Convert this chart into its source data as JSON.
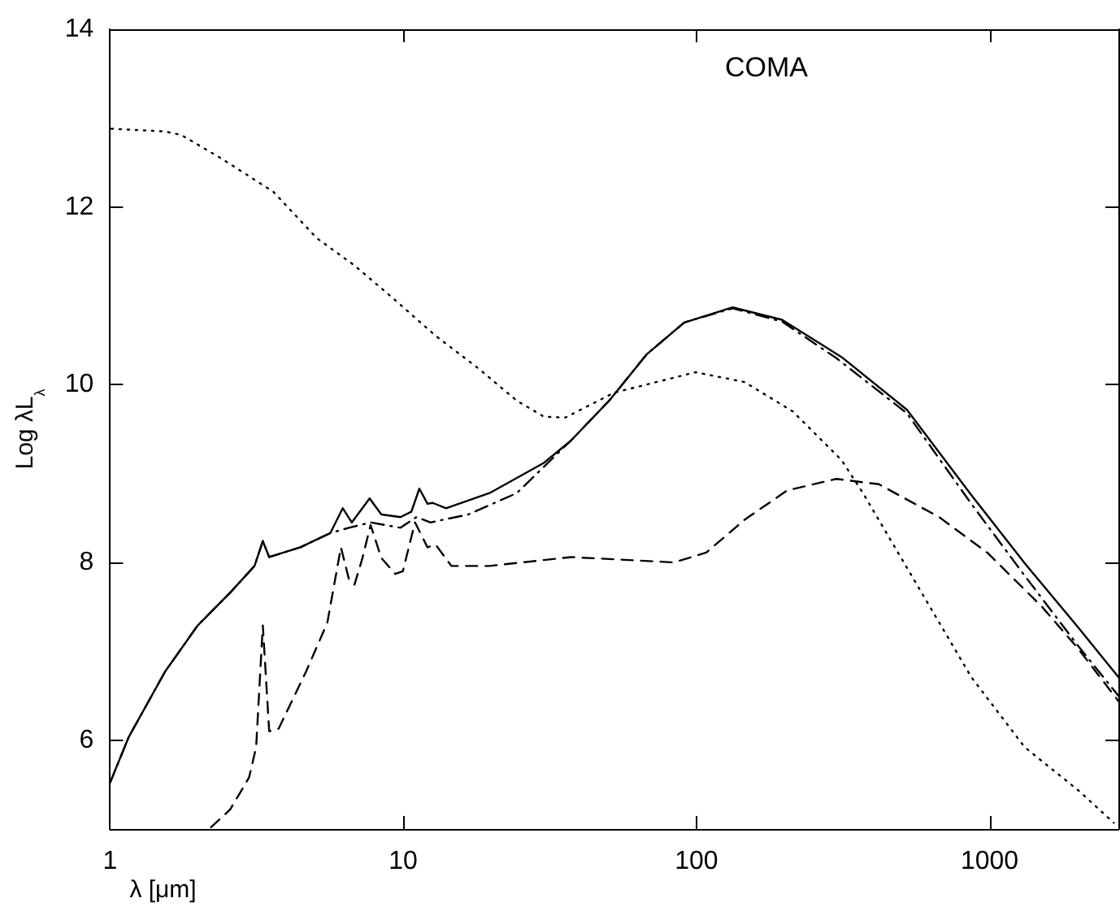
{
  "chart_data": {
    "type": "line",
    "xlabel": "λ [μm]",
    "ylabel": "Log λL$_{λ}$",
    "annotations": [
      "COMA"
    ],
    "log": "x",
    "xlim": [
      1,
      2750
    ],
    "xticks": [
      1,
      10,
      100,
      1000
    ],
    "ylim": [
      5,
      14
    ],
    "yticks": [
      6,
      8,
      10,
      12,
      14
    ],
    "marker": "none",
    "series": [
      {
        "color": "#000000",
        "line_style": "solid",
        "x": [
          1,
          1.16,
          1.54,
          1.99,
          2.57,
          3.11,
          3.32,
          3.49,
          4.46,
          5.64,
          6.22,
          6.68,
          7.68,
          8.42,
          9.79,
          10.66,
          11.35,
          12.1,
          12.6,
          14,
          19.7,
          30.2,
          37.3,
          50.4,
          67.6,
          90.9,
          133,
          196,
          313,
          522,
          866,
          1318,
          2016,
          2750
        ],
        "values": [
          5.52,
          6.04,
          6.77,
          7.29,
          7.66,
          7.96,
          8.24,
          8.06,
          8.17,
          8.33,
          8.61,
          8.45,
          8.72,
          8.54,
          8.51,
          8.57,
          8.83,
          8.66,
          8.67,
          8.61,
          8.78,
          9.12,
          9.37,
          9.82,
          10.34,
          10.7,
          10.87,
          10.73,
          10.31,
          9.72,
          8.76,
          7.99,
          7.26,
          6.71
        ]
      },
      {
        "color": "#000000",
        "line_style": "dashdot",
        "x": [
          1,
          1.16,
          1.54,
          1.99,
          2.57,
          3.11,
          3.32,
          3.49,
          4.46,
          5.64,
          6.53,
          7.74,
          9.79,
          11.1,
          12.4,
          16.7,
          24.4,
          37.3,
          50.4,
          67.6,
          90.9,
          133,
          196,
          300,
          522,
          866,
          1318,
          2016,
          2750
        ],
        "values": [
          5.52,
          6.04,
          6.77,
          7.29,
          7.66,
          7.96,
          8.24,
          8.06,
          8.17,
          8.33,
          8.39,
          8.45,
          8.39,
          8.51,
          8.45,
          8.54,
          8.78,
          9.37,
          9.82,
          10.34,
          10.7,
          10.86,
          10.71,
          10.3,
          9.68,
          8.66,
          7.85,
          7.05,
          6.5
        ]
      },
      {
        "color": "#000000",
        "line_style": "dashed",
        "x": [
          2.21,
          2.57,
          2.98,
          3.15,
          3.32,
          3.49,
          3.76,
          4.66,
          5.51,
          6.13,
          6.53,
          6.82,
          7.26,
          7.74,
          8.42,
          9.39,
          9.97,
          10.97,
          12.1,
          12.9,
          14.6,
          19.7,
          37.3,
          83.8,
          108,
          146,
          204,
          300,
          419,
          673,
          982,
          1510,
          2016,
          2750
        ],
        "values": [
          5.02,
          5.22,
          5.58,
          5.92,
          7.29,
          6.1,
          6.13,
          6.77,
          7.32,
          8.17,
          7.81,
          7.75,
          8.05,
          8.42,
          8.05,
          7.87,
          7.9,
          8.45,
          8.17,
          8.2,
          7.96,
          7.96,
          8.06,
          8.0,
          8.11,
          8.48,
          8.81,
          8.94,
          8.88,
          8.51,
          8.11,
          7.5,
          7.02,
          6.44
        ]
      },
      {
        "color": "#000000",
        "line_style": "dotted",
        "x": [
          1.01,
          1.54,
          1.75,
          2.36,
          3.61,
          5.07,
          6.83,
          9.18,
          12.9,
          18.1,
          24.4,
          30.2,
          35.7,
          52.4,
          99.3,
          146,
          213,
          313,
          370,
          565,
          866,
          1318,
          2016,
          2650
        ],
        "values": [
          12.88,
          12.85,
          12.81,
          12.56,
          12.17,
          11.65,
          11.34,
          10.98,
          10.55,
          10.18,
          9.82,
          9.64,
          9.63,
          9.91,
          10.14,
          10.03,
          9.7,
          9.15,
          8.78,
          7.75,
          6.71,
          5.92,
          5.43,
          5.07
        ]
      }
    ]
  }
}
